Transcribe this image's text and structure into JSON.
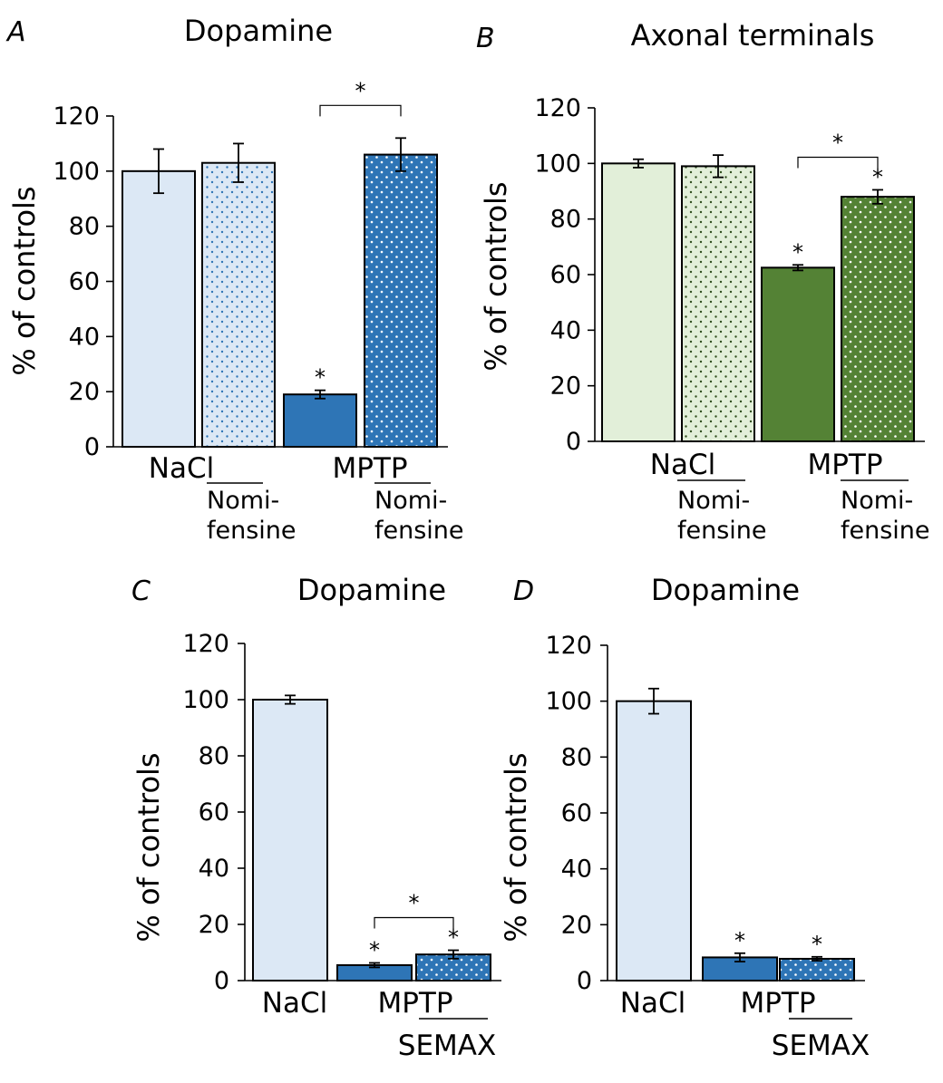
{
  "colors": {
    "blue_light": "#dce8f5",
    "blue": "#2e75b6",
    "green_light": "#e2efd9",
    "green": "#548235",
    "blue_dot": "#2e75b6",
    "green_dot": "#2f4f1e",
    "white_dot": "#ffffff"
  },
  "chart_data": [
    {
      "panel": "A",
      "type": "bar",
      "title": "Dopamine",
      "ylabel": "% of controls",
      "ylim": [
        0,
        120
      ],
      "yticks": [
        "0",
        "20",
        "40",
        "60",
        "80",
        "100",
        "120"
      ],
      "bars": [
        {
          "value": 100,
          "error": 8,
          "fill": "blue_light",
          "pattern": "none",
          "star": ""
        },
        {
          "value": 103,
          "error": 7,
          "fill": "blue_light",
          "pattern": "blue_dot",
          "star": ""
        },
        {
          "value": 19,
          "error": 1.5,
          "fill": "blue",
          "pattern": "none",
          "star": "*"
        },
        {
          "value": 106,
          "error": 6,
          "fill": "blue",
          "pattern": "white_dot",
          "star": ""
        }
      ],
      "bracket": {
        "from": 2,
        "to": 3,
        "label": "*"
      },
      "group_labels": [
        "NaCl",
        "MPTP"
      ],
      "sub_labels": [
        {
          "line1": "Nomi-",
          "line2": "fensine"
        },
        {
          "line1": "Nomi-",
          "line2": "fensine"
        }
      ]
    },
    {
      "panel": "B",
      "type": "bar",
      "title": "Axonal terminals",
      "ylabel": "% of controls",
      "ylim": [
        0,
        120
      ],
      "yticks": [
        "0",
        "20",
        "40",
        "60",
        "80",
        "100",
        "120"
      ],
      "bars": [
        {
          "value": 100,
          "error": 1.5,
          "fill": "green_light",
          "pattern": "none",
          "star": ""
        },
        {
          "value": 99,
          "error": 4,
          "fill": "green_light",
          "pattern": "green_dot",
          "star": ""
        },
        {
          "value": 62.5,
          "error": 1,
          "fill": "green",
          "pattern": "none",
          "star": "*"
        },
        {
          "value": 88,
          "error": 2.5,
          "fill": "green",
          "pattern": "white_dot",
          "star": "*"
        }
      ],
      "bracket": {
        "from": 2,
        "to": 3,
        "label": "*"
      },
      "group_labels": [
        "NaCl",
        "MPTP"
      ],
      "sub_labels": [
        {
          "line1": "Nomi-",
          "line2": "fensine"
        },
        {
          "line1": "Nomi-",
          "line2": "fensine"
        }
      ]
    },
    {
      "panel": "C",
      "type": "bar",
      "title": "Dopamine",
      "ylabel": "% of controls",
      "ylim": [
        0,
        120
      ],
      "yticks": [
        "0",
        "20",
        "40",
        "60",
        "80",
        "100",
        "120"
      ],
      "bars": [
        {
          "value": 100,
          "error": 1.5,
          "fill": "blue_light",
          "pattern": "none",
          "star": ""
        },
        {
          "value": 5.5,
          "error": 0.8,
          "fill": "blue",
          "pattern": "none",
          "star": "*"
        },
        {
          "value": 9.3,
          "error": 1.5,
          "fill": "blue",
          "pattern": "white_dot",
          "star": "*"
        }
      ],
      "bracket": {
        "from": 1,
        "to": 2,
        "label": "*"
      },
      "group_labels": [
        "NaCl",
        "MPTP"
      ],
      "sub_labels": [
        {
          "line1": "SEMAX",
          "line2": ""
        }
      ]
    },
    {
      "panel": "D",
      "type": "bar",
      "title": "Dopamine",
      "ylabel": "% of controls",
      "ylim": [
        0,
        120
      ],
      "yticks": [
        "0",
        "20",
        "40",
        "60",
        "80",
        "100",
        "120"
      ],
      "bars": [
        {
          "value": 100,
          "error": 4.5,
          "fill": "blue_light",
          "pattern": "none",
          "star": ""
        },
        {
          "value": 8.3,
          "error": 1.5,
          "fill": "blue",
          "pattern": "none",
          "star": "*"
        },
        {
          "value": 7.8,
          "error": 0.7,
          "fill": "blue",
          "pattern": "white_dot",
          "star": "*"
        }
      ],
      "bracket": null,
      "group_labels": [
        "NaCl",
        "MPTP"
      ],
      "sub_labels": [
        {
          "line1": "SEMAX",
          "line2": ""
        }
      ]
    }
  ]
}
